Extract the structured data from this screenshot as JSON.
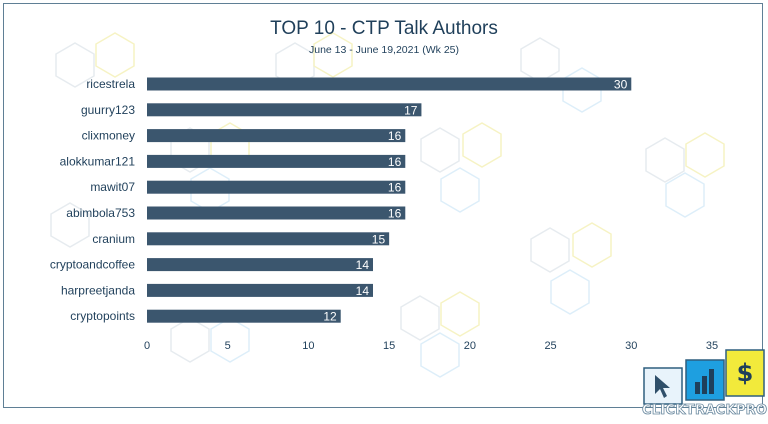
{
  "chart_data": {
    "type": "bar",
    "orientation": "horizontal",
    "title": "TOP 10 - CTP Talk Authors",
    "subtitle": "June 13 - June 19,2021 (Wk 25)",
    "categories": [
      "ricestrela",
      "guurry123",
      "clixmoney",
      "alokkumar121",
      "mawit07",
      "abimbola753",
      "cranium",
      "cryptoandcoffee",
      "harpreetjanda",
      "cryptopoints"
    ],
    "values": [
      30,
      17,
      16,
      16,
      16,
      16,
      15,
      14,
      14,
      12
    ],
    "xlim": [
      0,
      35
    ],
    "xticks": [
      "0",
      "5",
      "10",
      "15",
      "20",
      "25",
      "30",
      "35"
    ],
    "grid": false,
    "data_labels": true,
    "bar_color": "#3b566e",
    "label_color": "#ffffff"
  },
  "logo": {
    "text": "CLICKTRACKPROFIT",
    "icons": [
      "cursor-icon",
      "bar-chart-icon",
      "dollar-icon"
    ],
    "dollar_glyph": "$",
    "colors": [
      "#e8f3fb",
      "#1e9fe0",
      "#f2ea3b"
    ]
  }
}
